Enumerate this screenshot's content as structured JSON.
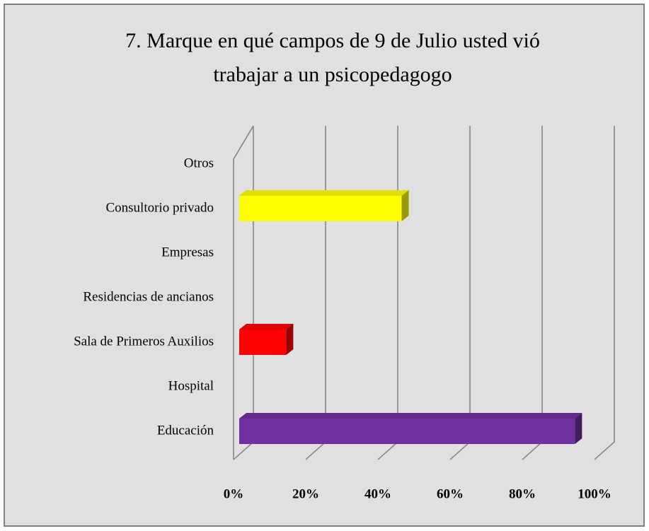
{
  "chart_data": {
    "type": "bar3d_horizontal",
    "title": [
      "7. Marque en qué campos de 9 de Julio usted vió",
      "trabajar a un psicopedagogo"
    ],
    "categories": [
      "Educación",
      "Hospital",
      "Sala de Primeros Auxilios",
      "Residencias de ancianos",
      "Empresas",
      "Consultorio privado",
      "Otros"
    ],
    "values": [
      93,
      0,
      13,
      0,
      0,
      45,
      0
    ],
    "colors": [
      "#7030a0",
      null,
      "#ff0000",
      null,
      null,
      "#ffff00",
      null
    ],
    "xlim": [
      0,
      100
    ],
    "xticks": [
      {
        "value": 0,
        "label": "0%"
      },
      {
        "value": 20,
        "label": "20%"
      },
      {
        "value": 40,
        "label": "40%"
      },
      {
        "value": 60,
        "label": "60%"
      },
      {
        "value": 80,
        "label": "80%"
      },
      {
        "value": 100,
        "label": "100%"
      }
    ],
    "grid": true
  }
}
